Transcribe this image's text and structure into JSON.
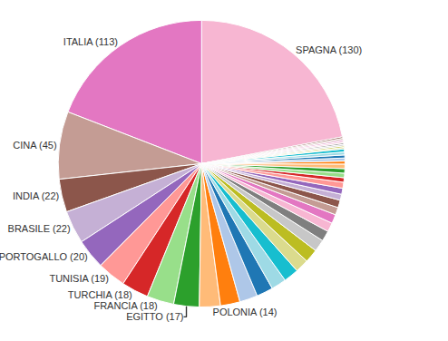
{
  "chart_data": {
    "type": "pie",
    "categories": [
      "SPAGNA (130)",
      "ITALIA (113)",
      "CINA (45)",
      "INDIA (22)",
      "BRASILE (22)",
      "PORTOGALLO (20)",
      "TUNISIA (19)",
      "TURCHIA (18)",
      "FRANCIA (18)",
      "EGITTO (17)",
      "POLONIA (14)",
      null,
      null,
      null,
      null,
      null,
      null,
      null,
      null,
      null,
      null,
      null,
      null,
      null,
      null,
      null,
      null,
      null,
      null,
      null,
      null,
      null,
      null,
      null,
      null,
      null,
      null,
      null,
      null,
      null,
      null,
      null,
      null,
      null
    ],
    "values": [
      130,
      113,
      45,
      22,
      22,
      20,
      19,
      18,
      18,
      17,
      14,
      13,
      12,
      11,
      10,
      10,
      9,
      9,
      8,
      7,
      6,
      6,
      5,
      5,
      4,
      4,
      4,
      3,
      3,
      3,
      3,
      2,
      2,
      2,
      2,
      2,
      1,
      1,
      1,
      1,
      1,
      1,
      1,
      1
    ],
    "colors": [
      "#f7b6d2",
      "#e377c2",
      "#c49c94",
      "#8c564b",
      "#c5b0d5",
      "#9467bd",
      "#ff9896",
      "#d62728",
      "#98df8a",
      "#2ca02c",
      "#ffbb78",
      "#ff7f0e",
      "#aec7e8",
      "#1f77b4",
      "#9edae5",
      "#17becf",
      "#dbdb8d",
      "#bcbd22",
      "#c7c7c7",
      "#7f7f7f",
      "#f7b6d2",
      "#e377c2",
      "#c49c94",
      "#8c564b",
      "#c5b0d5",
      "#9467bd",
      "#ff9896",
      "#d62728",
      "#98df8a",
      "#2ca02c",
      "#ffbb78",
      "#ff7f0e",
      "#aec7e8",
      "#1f77b4",
      "#9edae5",
      "#17becf",
      "#dbdb8d",
      "#bcbd22",
      "#c7c7c7",
      "#7f7f7f",
      "#f7b6d2",
      "#e377c2",
      "#c49c94",
      "#8c564b"
    ]
  }
}
